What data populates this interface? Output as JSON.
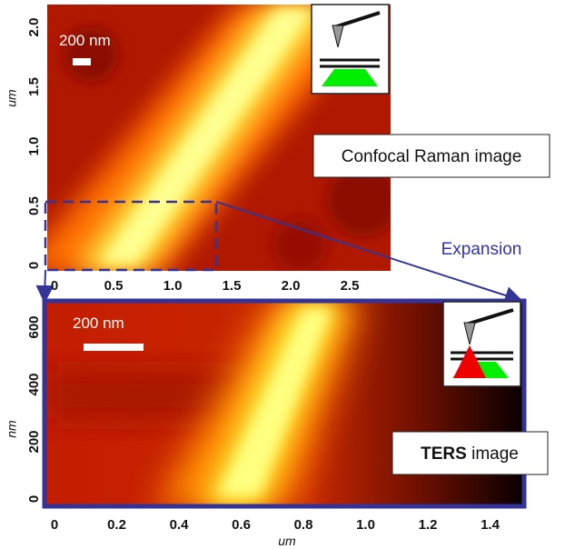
{
  "top_panel": {
    "scale_bar": "200 nm",
    "caption": "Confocal Raman image",
    "x_ticks": [
      "0",
      "0.5",
      "1.0",
      "1.5",
      "2.0",
      "2.5"
    ],
    "y_ticks": [
      "0",
      "0.5",
      "1.0",
      "1.5",
      "2.0"
    ],
    "y_label": "um"
  },
  "annotation": "Expansion",
  "bottom_panel": {
    "scale_bar": "200 nm",
    "caption_bold": "TERS",
    "caption_rest": "image",
    "x_ticks": [
      "0",
      "0.2",
      "0.4",
      "0.6",
      "0.8",
      "1.0",
      "1.2",
      "1.4"
    ],
    "y_ticks": [
      "0",
      "200",
      "400",
      "600"
    ],
    "x_label": "um",
    "y_label": "nm"
  }
}
